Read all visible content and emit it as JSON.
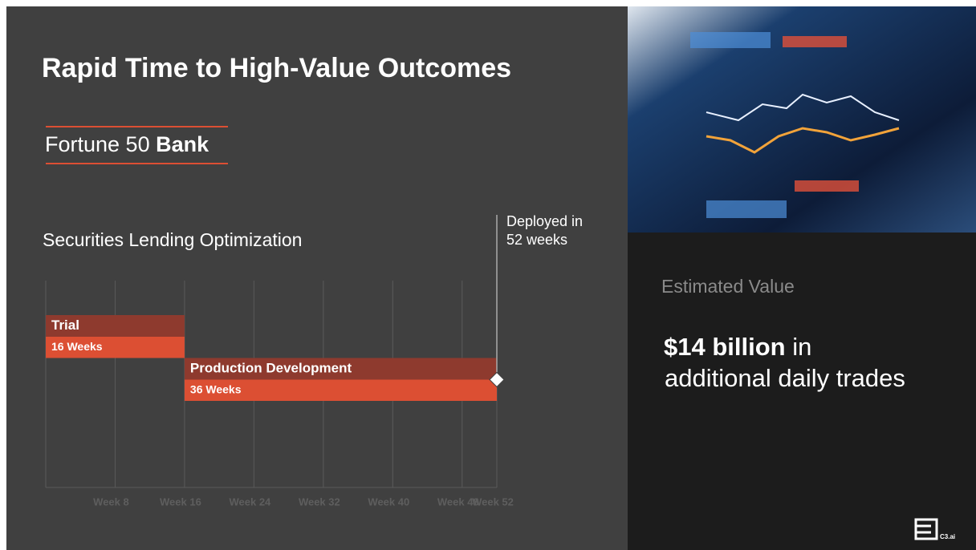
{
  "title": "Rapid Time to High-Value Outcomes",
  "subtitle": {
    "prefix": "Fortune 50",
    "bold": "Bank"
  },
  "chart_data": {
    "type": "gantt",
    "title": "Securities Lending Optimization",
    "categories": [
      "Trial",
      "Production Development"
    ],
    "starts": [
      0,
      16
    ],
    "values": [
      16,
      36
    ],
    "value_labels": [
      "16 Weeks",
      "36 Weeks"
    ],
    "header_color": "#8e3a2e",
    "color": "#dc4f33",
    "xlim": [
      0,
      52
    ],
    "xticks": [
      {
        "value": 8,
        "label": "Week 8"
      },
      {
        "value": 16,
        "label": "Week 16"
      },
      {
        "value": 24,
        "label": "Week 24"
      },
      {
        "value": 32,
        "label": "Week 32"
      },
      {
        "value": 40,
        "label": "Week 40"
      },
      {
        "value": 48,
        "label": "Week 48"
      },
      {
        "value": 52,
        "label": "Week 52"
      }
    ],
    "grid": true,
    "milestone": {
      "value": 52,
      "label": [
        "Deployed in",
        "52 weeks"
      ]
    }
  },
  "panel": {
    "heading": "Estimated Value",
    "bold": "$14 billion",
    "rest": [
      "in",
      "additional daily trades"
    ]
  },
  "logo": "C3.ai"
}
